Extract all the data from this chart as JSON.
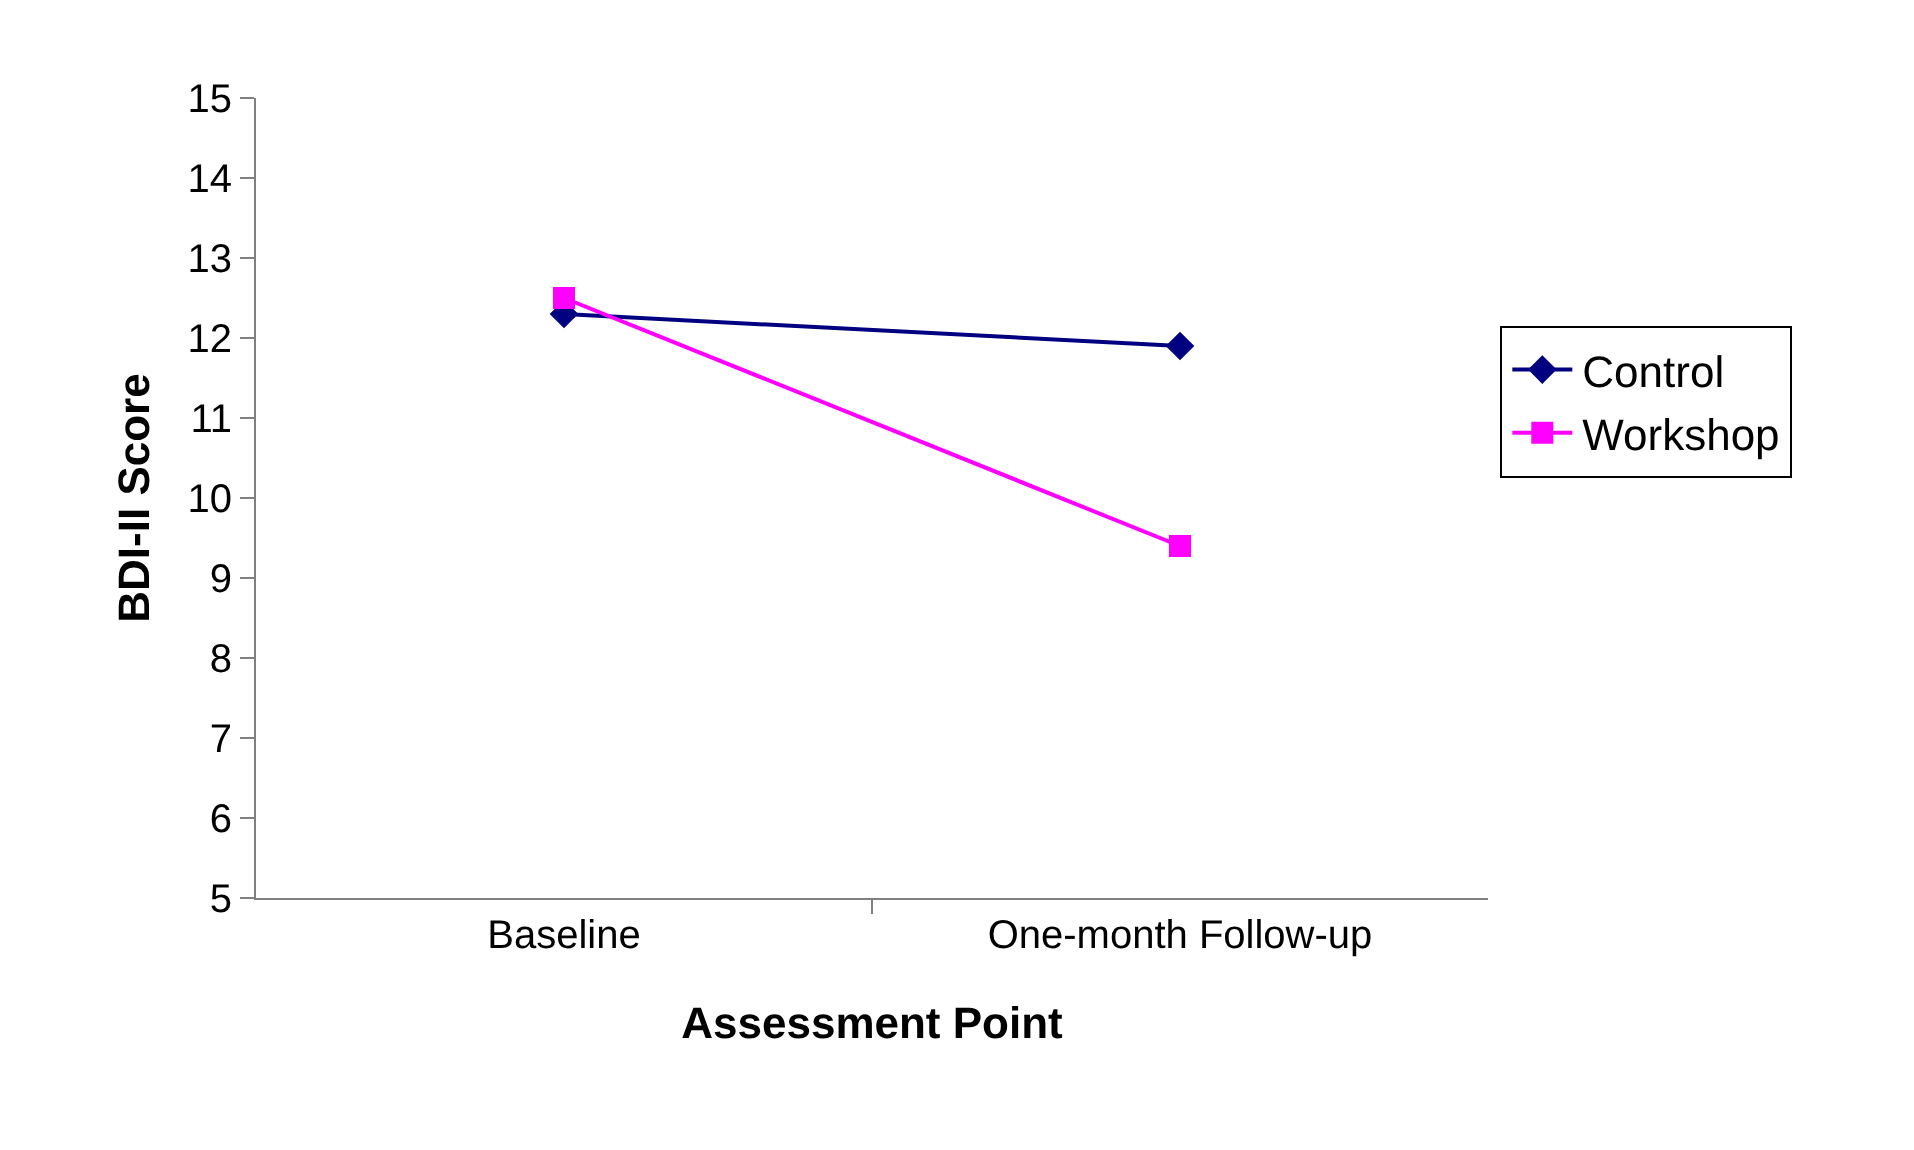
{
  "chart_data": {
    "type": "line",
    "xlabel": "Assessment Point",
    "ylabel": "BDI-II Score",
    "categories": [
      "Baseline",
      "One-month Follow-up"
    ],
    "series": [
      {
        "name": "Control",
        "color": "#000080",
        "values": [
          12.3,
          11.9
        ],
        "marker": "diamond"
      },
      {
        "name": "Workshop",
        "color": "#ff00ff",
        "values": [
          12.5,
          9.4
        ],
        "marker": "square"
      }
    ],
    "ylim": [
      5,
      15
    ],
    "yticks": [
      5,
      6,
      7,
      8,
      9,
      10,
      11,
      12,
      13,
      14,
      15
    ],
    "legend": "right",
    "line_style": "solid"
  }
}
